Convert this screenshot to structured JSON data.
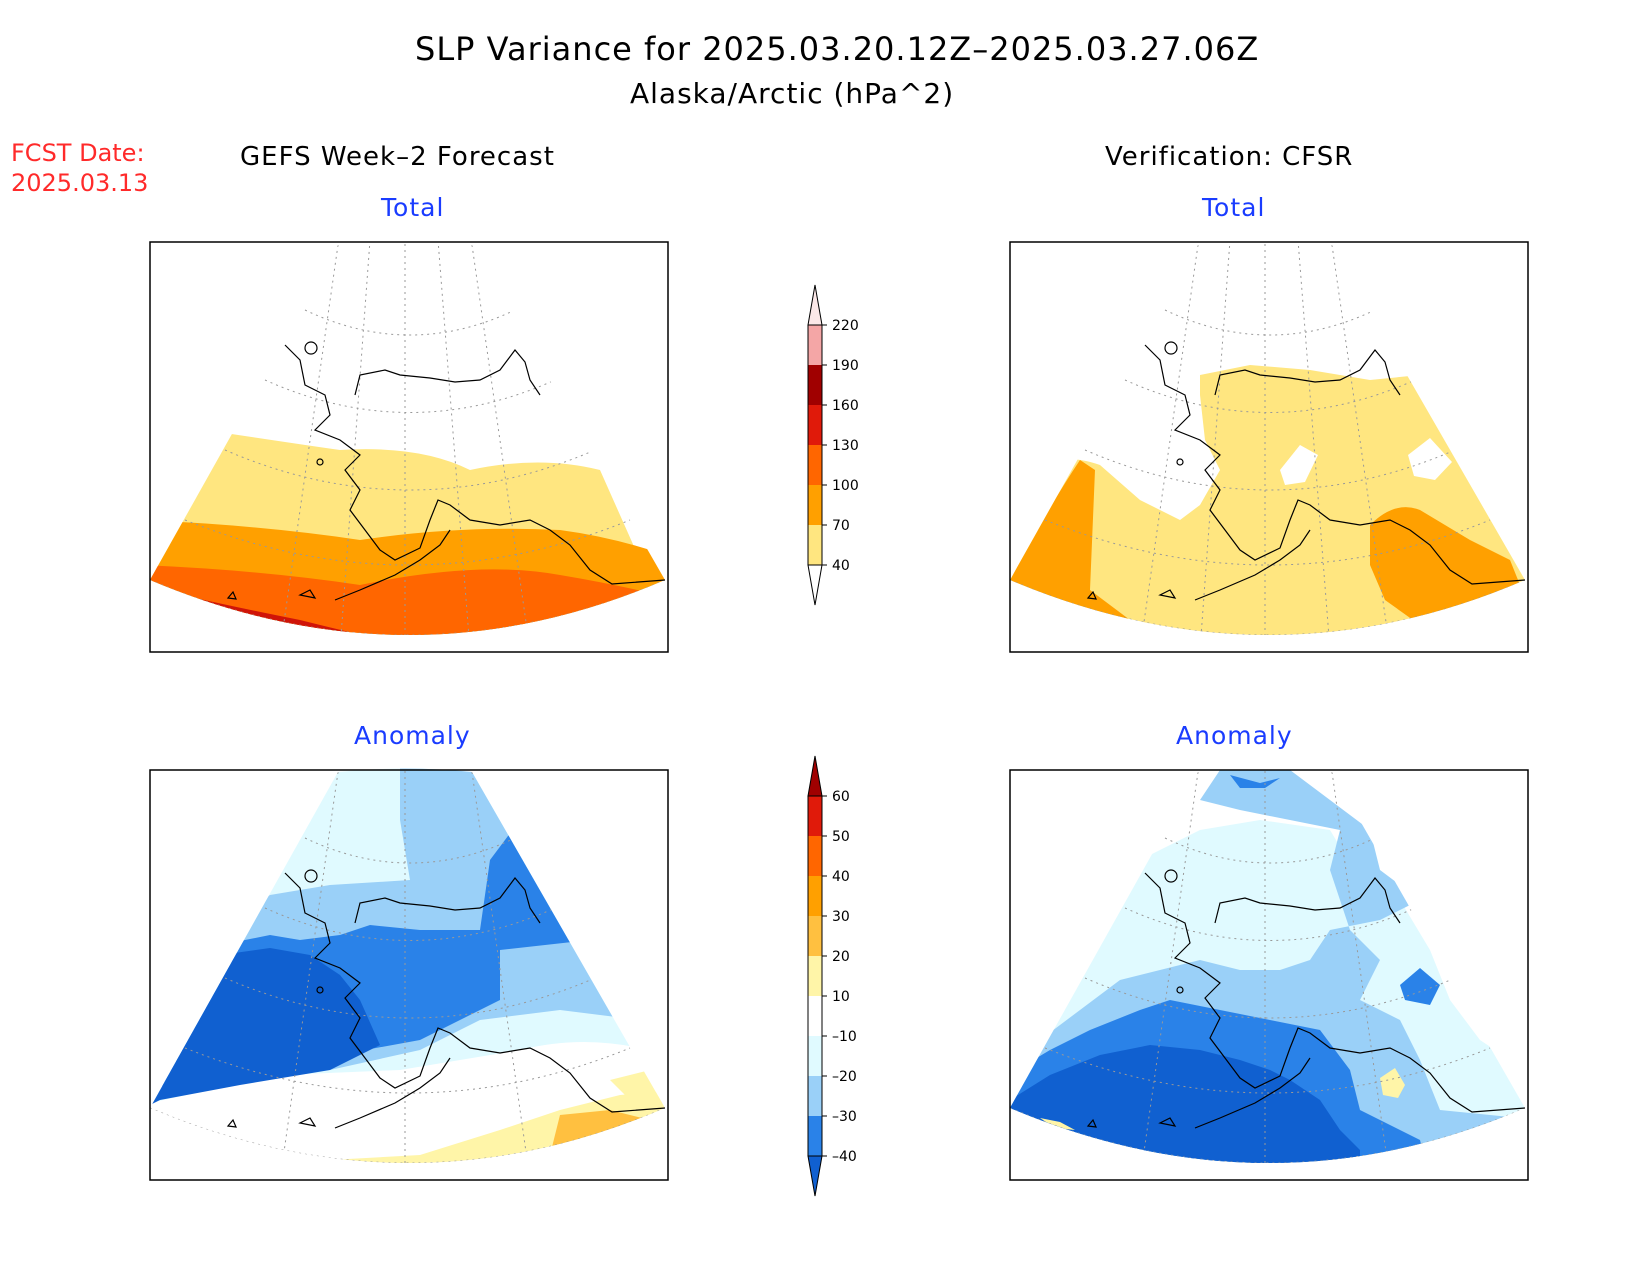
{
  "title": "SLP Variance for 2025.03.20.12Z–2025.03.27.06Z",
  "subtitle": "Alaska/Arctic (hPa^2)",
  "fcst_date": {
    "label": "FCST Date:",
    "value": "2025.03.13"
  },
  "columns": {
    "left": "GEFS Week–2 Forecast",
    "right": "Verification: CFSR"
  },
  "panels": [
    {
      "column": "left",
      "row": "top",
      "title": "Total"
    },
    {
      "column": "right",
      "row": "top",
      "title": "Total"
    },
    {
      "column": "left",
      "row": "bottom",
      "title": "Anomaly"
    },
    {
      "column": "right",
      "row": "bottom",
      "title": "Anomaly"
    }
  ],
  "total_colorbar": {
    "ticks": [
      "220",
      "190",
      "160",
      "130",
      "100",
      "70",
      "40"
    ],
    "colors": [
      "#fbe8e8",
      "#f4a6a6",
      "#a00000",
      "#e01a0a",
      "#ff6600",
      "#ffa000",
      "#ffe680"
    ],
    "below_color": "#ffffff"
  },
  "anomaly_colorbar": {
    "ticks": [
      "60",
      "50",
      "40",
      "30",
      "20",
      "10",
      "–10",
      "–20",
      "–30",
      "–40"
    ],
    "colors": [
      "#a00000",
      "#e01a0a",
      "#ff6600",
      "#ffa000",
      "#ffc040",
      "#fff5a8",
      "#ffffff",
      "#e0faff",
      "#9ad0f8",
      "#2a82e8",
      "#1060d0"
    ]
  }
}
